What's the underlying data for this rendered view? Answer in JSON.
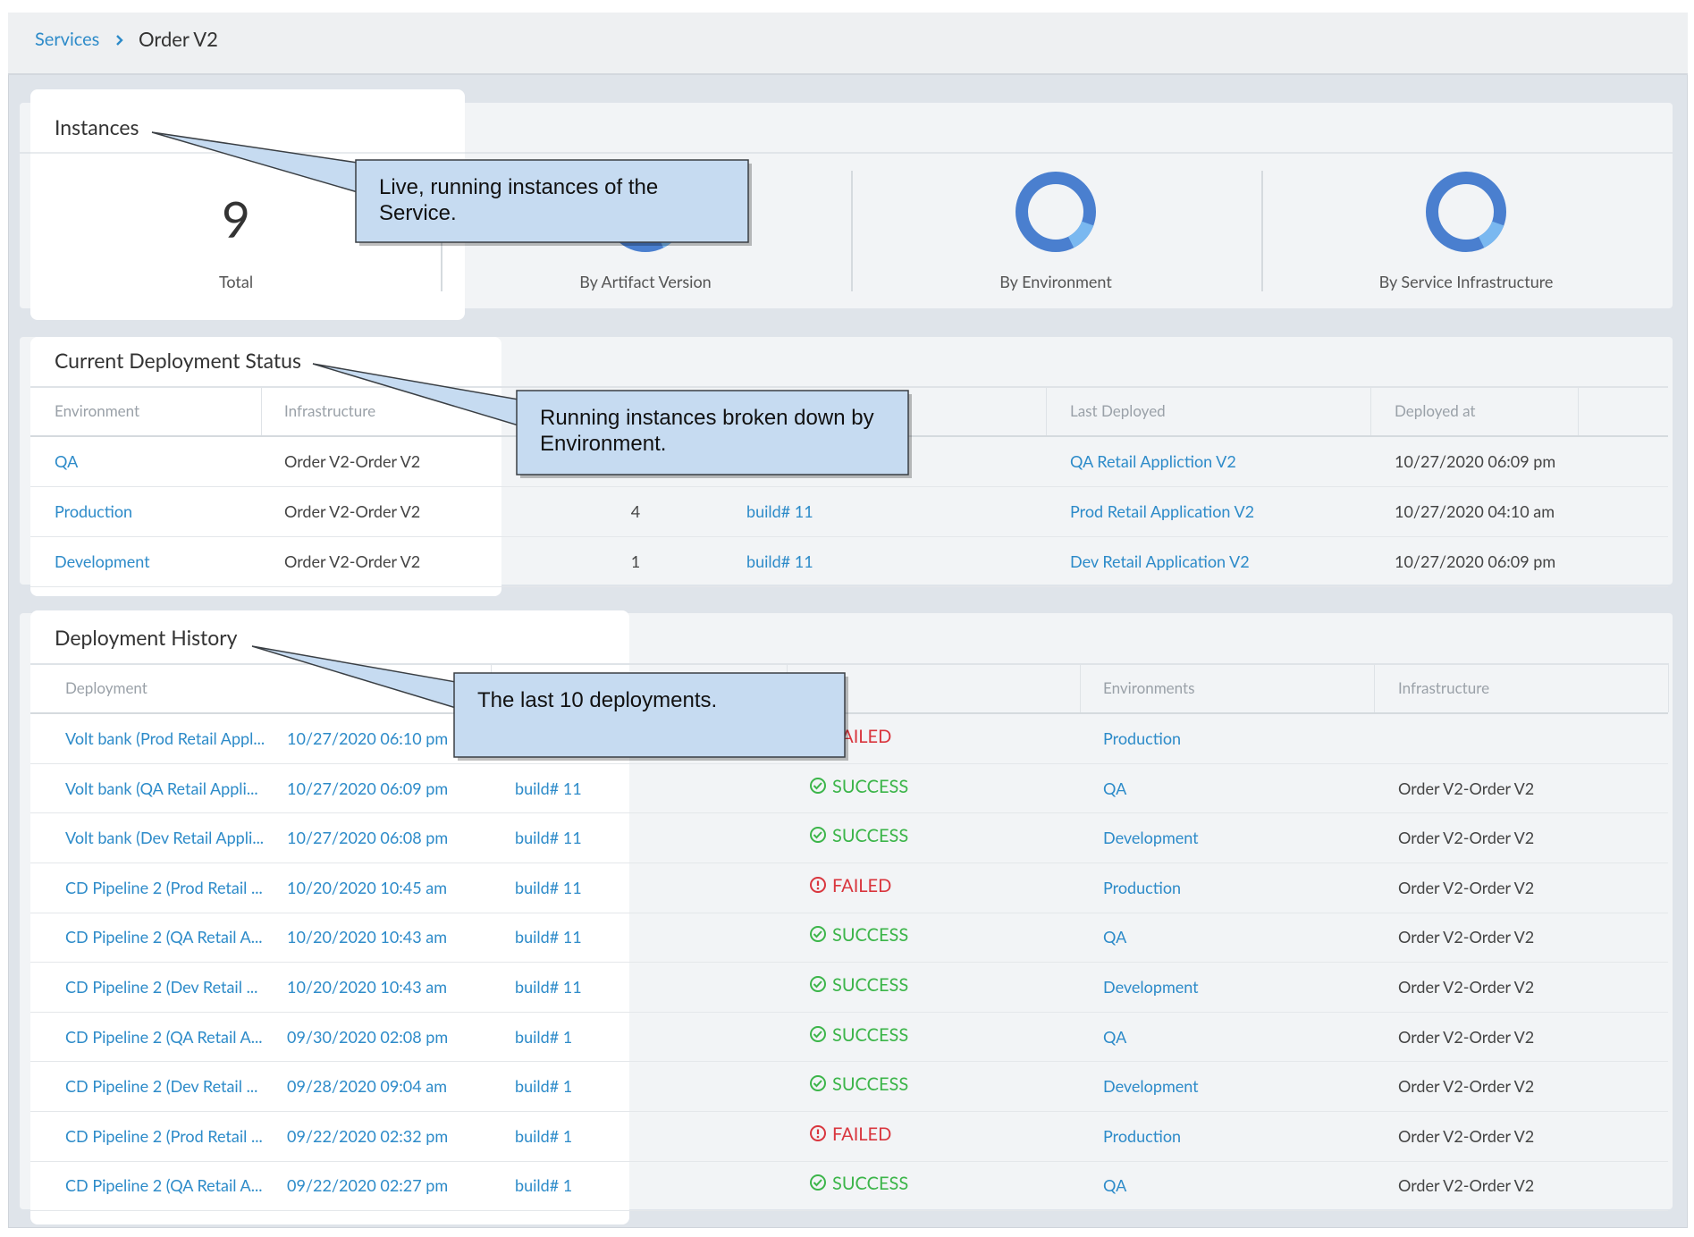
{
  "breadcrumb": [
    "Services",
    "Order V2"
  ],
  "instances": {
    "title": "Instances",
    "total": "9",
    "total_label": "Total",
    "charts": [
      "By Artifact Version",
      "By Environment",
      "By Service Infrastructure"
    ]
  },
  "current": {
    "title": "Current Deployment Status",
    "columns": [
      "Environment",
      "Infrastructure",
      null,
      null,
      "Last Deployed",
      "Deployed at"
    ],
    "rows": [
      [
        "QA",
        "Order V2-Order V2",
        null,
        null,
        "QA Retail Appliction V2",
        "10/27/2020 06:09 pm"
      ],
      [
        "Production",
        "Order V2-Order V2",
        "4",
        "build# 11",
        "Prod Retail Application V2",
        "10/27/2020 04:10 am"
      ],
      [
        "Development",
        "Order V2-Order V2",
        "1",
        "build# 11",
        "Dev Retail Application V2",
        "10/27/2020 06:09 pm"
      ]
    ]
  },
  "history": {
    "title": "Deployment History",
    "columns": [
      "Deployment",
      null,
      null,
      null,
      "Environments",
      "Infrastructure"
    ],
    "status_styles": {
      "SUCCESS": {
        "color": "#3cb54a",
        "icon": "check"
      },
      "FAILED": {
        "color": "#d9363e",
        "icon": "alert"
      }
    },
    "rows": [
      [
        "Volt bank (Prod Retail Appl...",
        "10/27/2020 06:10 pm",
        null,
        "FAILED",
        "Production",
        null
      ],
      [
        "Volt bank (QA Retail Appli...",
        "10/27/2020 06:09 pm",
        "build# 11",
        "SUCCESS",
        "QA",
        "Order V2-Order V2"
      ],
      [
        "Volt bank (Dev Retail Appli...",
        "10/27/2020 06:08 pm",
        "build# 11",
        "SUCCESS",
        "Development",
        "Order V2-Order V2"
      ],
      [
        "CD Pipeline 2 (Prod Retail ...",
        "10/20/2020 10:45 am",
        "build# 11",
        "FAILED",
        "Production",
        "Order V2-Order V2"
      ],
      [
        "CD Pipeline 2 (QA Retail A...",
        "10/20/2020 10:43 am",
        "build# 11",
        "SUCCESS",
        "QA",
        "Order V2-Order V2"
      ],
      [
        "CD Pipeline 2 (Dev Retail ...",
        "10/20/2020 10:43 am",
        "build# 11",
        "SUCCESS",
        "Development",
        "Order V2-Order V2"
      ],
      [
        "CD Pipeline 2 (QA Retail A...",
        "09/30/2020 02:08 pm",
        "build# 1",
        "SUCCESS",
        "QA",
        "Order V2-Order V2"
      ],
      [
        "CD Pipeline 2 (Dev Retail ...",
        "09/28/2020 09:04 am",
        "build# 1",
        "SUCCESS",
        "Development",
        "Order V2-Order V2"
      ],
      [
        "CD Pipeline 2 (Prod Retail ...",
        "09/22/2020 02:32 pm",
        "build# 1",
        "FAILED",
        "Production",
        "Order V2-Order V2"
      ],
      [
        "CD Pipeline 2 (QA Retail A...",
        "09/22/2020 02:27 pm",
        "build# 1",
        "SUCCESS",
        "QA",
        "Order V2-Order V2"
      ]
    ]
  },
  "callouts": [
    "Live, running instances of the Service.",
    "Running instances broken down by Environment.",
    "The last 10 deployments."
  ]
}
